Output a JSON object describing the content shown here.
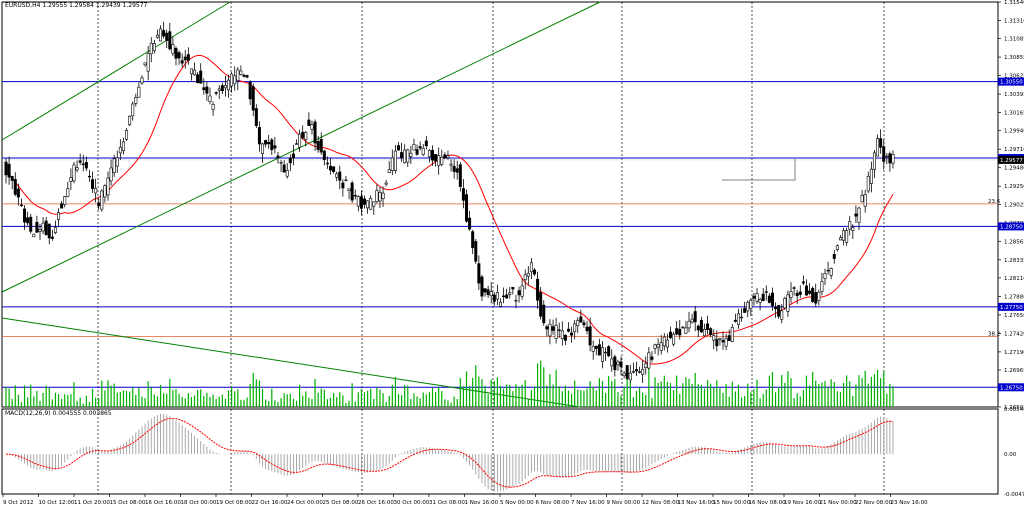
{
  "header": {
    "symbol": "EURUSD,H4",
    "open": "1.29555",
    "high": "1.29584",
    "low": "1.29439",
    "close": "1.29577"
  },
  "macd": {
    "title": "MACD(12,26,9) 0.004555 0.003865",
    "ticks": [
      "0.005401",
      "0.00",
      "-0.00477"
    ],
    "ylim": [
      -0.00477,
      0.005401
    ]
  },
  "price_axis": {
    "ticks": [
      "1.31540",
      "1.31310",
      "1.31085",
      "1.30855",
      "1.30625",
      "1.30395",
      "1.30165",
      "1.29940",
      "1.29710",
      "1.29480",
      "1.29250",
      "1.29025",
      "1.28795",
      "1.28565",
      "1.28335",
      "1.28110",
      "1.27880",
      "1.27650",
      "1.27420",
      "1.27190",
      "1.26965",
      "1.26735",
      "1.26505"
    ]
  },
  "time_axis": {
    "labels": [
      "9 Oct 2012",
      "10 Oct 12:00",
      "11 Oct 20:00",
      "15 Oct 08:00",
      "16 Oct 16:00",
      "18 Oct 00:00",
      "19 Oct 08:00",
      "22 Oct 16:00",
      "24 Oct 00:00",
      "25 Oct 08:00",
      "26 Oct 16:00",
      "30 Oct 00:00",
      "31 Oct 08:00",
      "1 Nov 16:00",
      "5 Nov 00:00",
      "6 Nov 08:00",
      "7 Nov 16:00",
      "9 Nov 00:00",
      "12 Nov 08:00",
      "13 Nov 16:00",
      "15 Nov 00:00",
      "16 Nov 08:00",
      "19 Nov 16:00",
      "21 Nov 00:00",
      "22 Nov 08:00",
      "23 Nov 16:00"
    ]
  },
  "levels": {
    "horizontal": [
      {
        "value": "1.30550",
        "color": "#0000cc"
      },
      {
        "value": "1.29600",
        "color": "#0000cc"
      },
      {
        "value": "1.28750",
        "color": "#0000cc"
      },
      {
        "value": "1.27750",
        "color": "#0000cc"
      },
      {
        "value": "1.26750",
        "color": "#0000cc"
      }
    ],
    "fibo": [
      {
        "label": "23.6",
        "price": 1.2903,
        "color": "#e06030"
      },
      {
        "label": "38.2",
        "price": 1.2738,
        "color": "#e06030"
      }
    ],
    "current_price": "1.29577",
    "current_price_value": 1.29577
  },
  "colors": {
    "candle": "#000000",
    "ma": "#ff0000",
    "channel": "#008000",
    "volume": "#00b000",
    "macd_signal": "#ff0000",
    "macd_hist": "#a0a0a0",
    "level": "#0000cc",
    "tag_bg": "#0000cc"
  },
  "chart_data": {
    "type": "candlestick",
    "symbol": "EURUSD",
    "timeframe": "H4",
    "ylim": [
      1.26505,
      1.3154
    ],
    "close_path": [
      {
        "i": 0,
        "c": 1.2945
      },
      {
        "i": 4,
        "c": 1.2905
      },
      {
        "i": 8,
        "c": 1.287
      },
      {
        "i": 12,
        "c": 1.288
      },
      {
        "i": 14,
        "c": 1.2855
      },
      {
        "i": 18,
        "c": 1.2905
      },
      {
        "i": 22,
        "c": 1.295
      },
      {
        "i": 26,
        "c": 1.2945
      },
      {
        "i": 30,
        "c": 1.2905
      },
      {
        "i": 34,
        "c": 1.2945
      },
      {
        "i": 38,
        "c": 1.2975
      },
      {
        "i": 42,
        "c": 1.304
      },
      {
        "i": 46,
        "c": 1.309
      },
      {
        "i": 50,
        "c": 1.312
      },
      {
        "i": 54,
        "c": 1.3095
      },
      {
        "i": 58,
        "c": 1.308
      },
      {
        "i": 62,
        "c": 1.306
      },
      {
        "i": 66,
        "c": 1.303
      },
      {
        "i": 70,
        "c": 1.3045
      },
      {
        "i": 74,
        "c": 1.3065
      },
      {
        "i": 78,
        "c": 1.306
      },
      {
        "i": 82,
        "c": 1.297
      },
      {
        "i": 86,
        "c": 1.2975
      },
      {
        "i": 90,
        "c": 1.2945
      },
      {
        "i": 94,
        "c": 1.2975
      },
      {
        "i": 98,
        "c": 1.3005
      },
      {
        "i": 102,
        "c": 1.2965
      },
      {
        "i": 106,
        "c": 1.294
      },
      {
        "i": 110,
        "c": 1.2925
      },
      {
        "i": 114,
        "c": 1.2905
      },
      {
        "i": 118,
        "c": 1.2905
      },
      {
        "i": 122,
        "c": 1.292
      },
      {
        "i": 126,
        "c": 1.2965
      },
      {
        "i": 130,
        "c": 1.2965
      },
      {
        "i": 134,
        "c": 1.2975
      },
      {
        "i": 138,
        "c": 1.296
      },
      {
        "i": 142,
        "c": 1.296
      },
      {
        "i": 146,
        "c": 1.2945
      },
      {
        "i": 150,
        "c": 1.287
      },
      {
        "i": 154,
        "c": 1.279
      },
      {
        "i": 158,
        "c": 1.2785
      },
      {
        "i": 162,
        "c": 1.279
      },
      {
        "i": 166,
        "c": 1.279
      },
      {
        "i": 170,
        "c": 1.283
      },
      {
        "i": 174,
        "c": 1.275
      },
      {
        "i": 178,
        "c": 1.2745
      },
      {
        "i": 182,
        "c": 1.274
      },
      {
        "i": 186,
        "c": 1.276
      },
      {
        "i": 190,
        "c": 1.272
      },
      {
        "i": 194,
        "c": 1.2715
      },
      {
        "i": 198,
        "c": 1.27
      },
      {
        "i": 202,
        "c": 1.2685
      },
      {
        "i": 206,
        "c": 1.27
      },
      {
        "i": 210,
        "c": 1.272
      },
      {
        "i": 214,
        "c": 1.2735
      },
      {
        "i": 218,
        "c": 1.2745
      },
      {
        "i": 222,
        "c": 1.276
      },
      {
        "i": 226,
        "c": 1.2745
      },
      {
        "i": 230,
        "c": 1.273
      },
      {
        "i": 234,
        "c": 1.274
      },
      {
        "i": 238,
        "c": 1.277
      },
      {
        "i": 242,
        "c": 1.279
      },
      {
        "i": 246,
        "c": 1.279
      },
      {
        "i": 250,
        "c": 1.277
      },
      {
        "i": 254,
        "c": 1.279
      },
      {
        "i": 258,
        "c": 1.28
      },
      {
        "i": 262,
        "c": 1.278
      },
      {
        "i": 266,
        "c": 1.282
      },
      {
        "i": 270,
        "c": 1.286
      },
      {
        "i": 274,
        "c": 1.288
      },
      {
        "i": 278,
        "c": 1.292
      },
      {
        "i": 282,
        "c": 1.2985
      },
      {
        "i": 284,
        "c": 1.296
      },
      {
        "i": 286,
        "c": 1.295
      },
      {
        "i": 287,
        "c": 1.29577
      }
    ]
  }
}
